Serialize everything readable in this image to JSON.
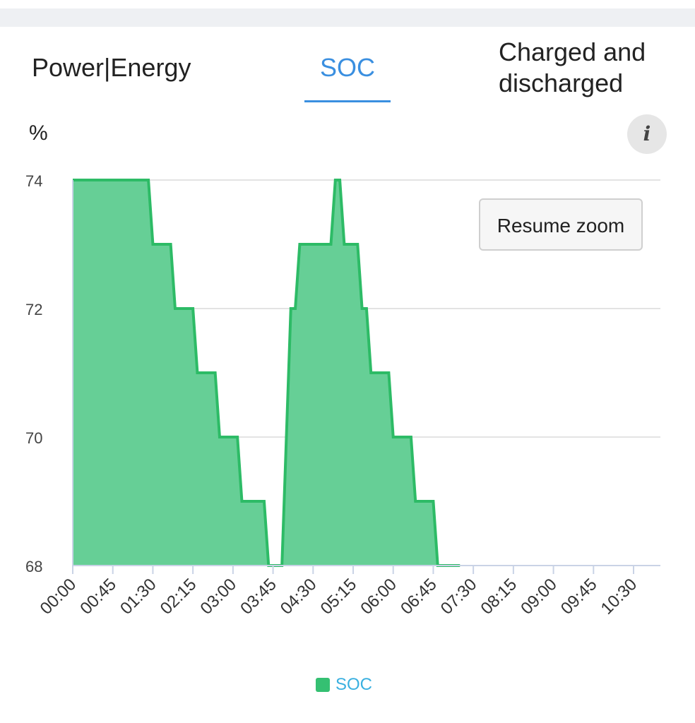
{
  "tabs": {
    "power_energy": "Power|Energy",
    "soc": "SOC",
    "charged_discharged": "Charged and discharged"
  },
  "unit": "%",
  "info_icon": "i",
  "resume_zoom_label": "Resume zoom",
  "legend_label": "SOC",
  "colors": {
    "accent": "#3a8fe0",
    "series_line": "#2dbb66",
    "series_fill": "#66cf96",
    "legend_text": "#3ab0e0"
  },
  "chart_data": {
    "type": "area",
    "title": "",
    "xlabel": "",
    "ylabel": "%",
    "ylim": [
      68,
      74
    ],
    "yticks": [
      68,
      70,
      72,
      74
    ],
    "xlim_minutes": [
      0,
      675
    ],
    "xticks": [
      "00:00",
      "00:45",
      "01:30",
      "02:15",
      "03:00",
      "03:45",
      "04:30",
      "05:15",
      "06:00",
      "06:45",
      "07:30",
      "08:15",
      "09:00",
      "09:45",
      "10:30"
    ],
    "grid": "horizontal",
    "legend_position": "bottom",
    "series": [
      {
        "name": "SOC",
        "points": [
          [
            "00:00",
            74
          ],
          [
            "01:25",
            74
          ],
          [
            "01:30",
            73
          ],
          [
            "01:50",
            73
          ],
          [
            "01:55",
            72
          ],
          [
            "02:15",
            72
          ],
          [
            "02:20",
            71
          ],
          [
            "02:40",
            71
          ],
          [
            "02:45",
            70
          ],
          [
            "03:05",
            70
          ],
          [
            "03:10",
            69
          ],
          [
            "03:35",
            69
          ],
          [
            "03:40",
            68
          ],
          [
            "03:55",
            68
          ],
          [
            "04:05",
            72
          ],
          [
            "04:10",
            72
          ],
          [
            "04:15",
            73
          ],
          [
            "04:50",
            73
          ],
          [
            "04:55",
            74
          ],
          [
            "05:00",
            74
          ],
          [
            "05:05",
            73
          ],
          [
            "05:20",
            73
          ],
          [
            "05:25",
            72
          ],
          [
            "05:30",
            72
          ],
          [
            "05:35",
            71
          ],
          [
            "05:55",
            71
          ],
          [
            "06:00",
            70
          ],
          [
            "06:20",
            70
          ],
          [
            "06:25",
            69
          ],
          [
            "06:45",
            69
          ],
          [
            "06:50",
            68
          ],
          [
            "07:15",
            68
          ]
        ]
      }
    ]
  }
}
